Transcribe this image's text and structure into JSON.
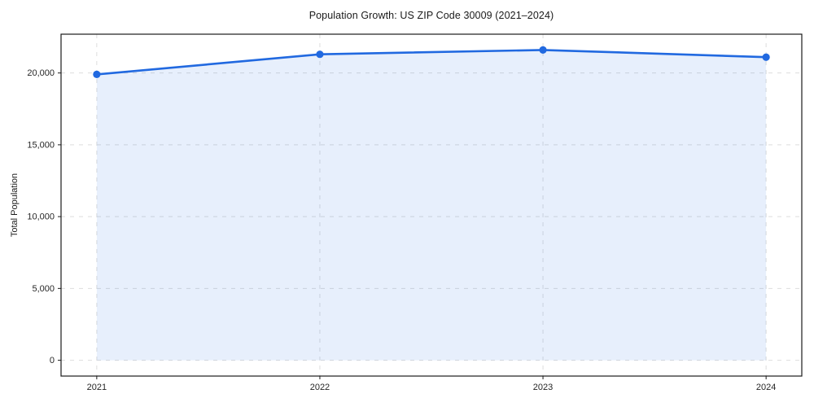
{
  "chart_data": {
    "type": "area",
    "title": "Population Growth: US ZIP Code 30009 (2021–2024)",
    "xlabel": "",
    "ylabel": "Total Population",
    "x": [
      2021,
      2022,
      2023,
      2024
    ],
    "categories": [
      "2021",
      "2022",
      "2023",
      "2024"
    ],
    "series": [
      {
        "name": "Total Population",
        "values": [
          19900,
          21300,
          21600,
          21100
        ]
      }
    ],
    "area_baseline": 0,
    "xlim": [
      2020.84,
      2024.16
    ],
    "ylim": [
      -1100,
      22700
    ],
    "yticks": [
      0,
      5000,
      10000,
      15000,
      20000
    ],
    "ytick_labels": [
      "0",
      "5,000",
      "10,000",
      "15,000",
      "20,000"
    ],
    "grid": true,
    "grid_style": "dashed",
    "legend": "none",
    "marker": "circle",
    "colors": {
      "line": "#2169e0",
      "fill": "#2169e0",
      "fill_opacity": 0.11,
      "grid": "#dddddd",
      "axis": "#1a1a1a",
      "text": "#262626",
      "background": "#ffffff"
    }
  }
}
